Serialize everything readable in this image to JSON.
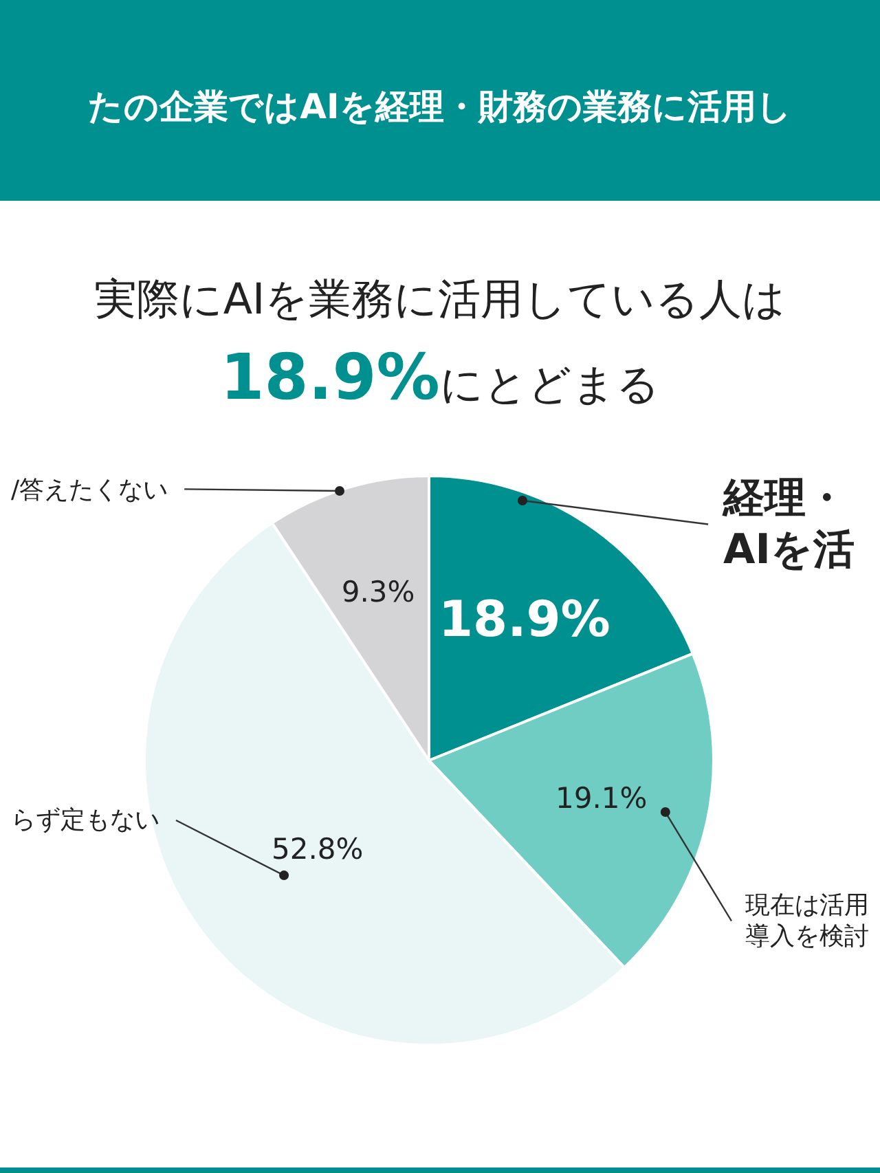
{
  "chart_data": {
    "type": "pie",
    "title": "たの企業ではAIを経理・財務の業務に活用し",
    "subtitle": "実際にAIを業務に活用している人は\n18.9%にとどまる",
    "categories": [
      "経理・AIを活",
      "現在は活用導入を検討",
      "らず定もない",
      "/答えたくない"
    ],
    "values": [
      18.9,
      19.1,
      52.8,
      9.3
    ],
    "colors": [
      "#00908f",
      "#6fcdc3",
      "#eaf6f6",
      "#d4d4d6"
    ],
    "value_labels": [
      "18.9%",
      "19.1%",
      "52.8%",
      "9.3%"
    ]
  }
}
